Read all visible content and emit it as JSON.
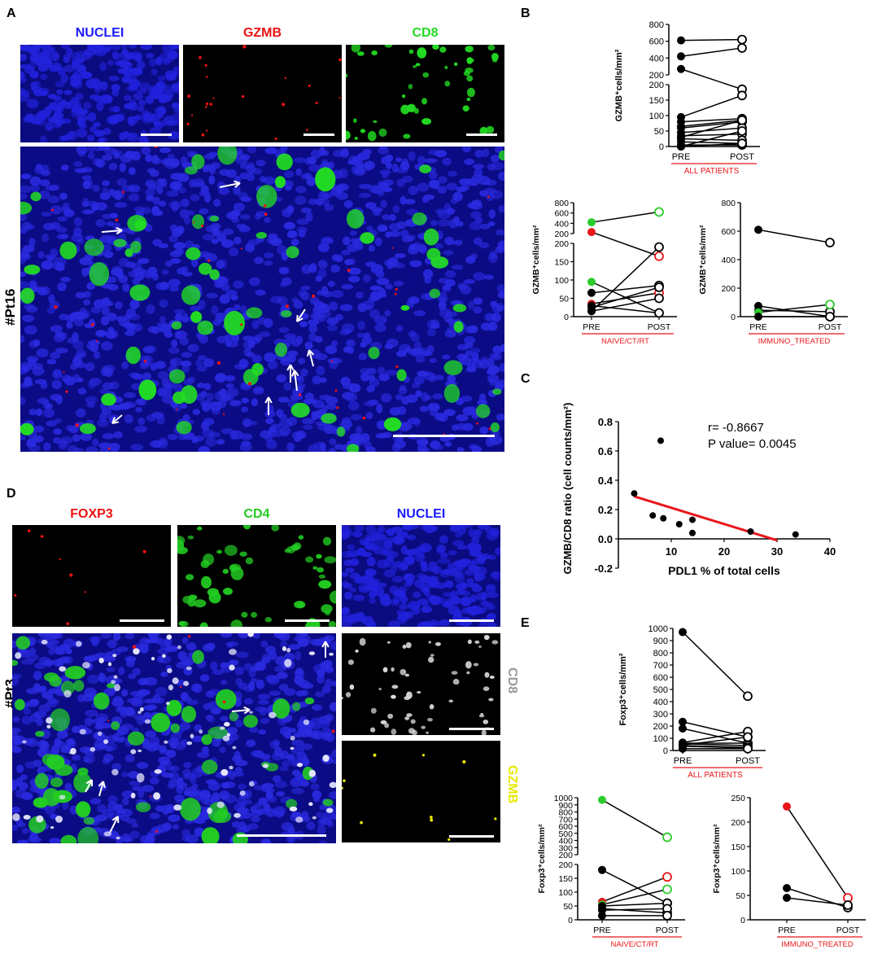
{
  "panel_letters": {
    "A": "A",
    "B": "B",
    "C": "C",
    "D": "D",
    "E": "E"
  },
  "panel_A": {
    "channels": [
      "NUCLEI",
      "GZMB",
      "CD8"
    ],
    "patient": "#Pt16",
    "colors": {
      "nuclei": "#1a1aff",
      "gzmb": "#ee1111",
      "cd8": "#22dd22"
    }
  },
  "panel_D": {
    "channels": [
      "FOXP3",
      "CD4",
      "NUCLEI"
    ],
    "side_channels": [
      "CD8",
      "GZMB"
    ],
    "patient": "#Pt3",
    "colors": {
      "foxp3": "#ee1111",
      "cd4": "#22cc22",
      "nuclei": "#1a1aff",
      "cd8": "#9a9a9a",
      "gzmb": "#e8e800"
    }
  },
  "chart_data": [
    {
      "id": "B-all",
      "type": "line",
      "ylabel": "GZMB⁺cells/mm²",
      "categories": [
        "PRE",
        "POST"
      ],
      "group_label": "ALL PATIENTS",
      "y_axis": "broken",
      "y_ticks_lower": [
        "0",
        "50",
        "100",
        "150",
        "200"
      ],
      "y_ticks_upper": [
        "200",
        "400",
        "600",
        "800"
      ],
      "pairs": [
        [
          610,
          620
        ],
        [
          420,
          520
        ],
        [
          270,
          185
        ],
        [
          95,
          165
        ],
        [
          80,
          90
        ],
        [
          65,
          85
        ],
        [
          60,
          80
        ],
        [
          45,
          60
        ],
        [
          35,
          40
        ],
        [
          25,
          20
        ],
        [
          15,
          10
        ],
        [
          5,
          5
        ],
        [
          30,
          85
        ],
        [
          0,
          50
        ],
        [
          0,
          10
        ]
      ]
    },
    {
      "id": "B-naive",
      "type": "line",
      "ylabel": "GZMB⁺cells/mm²",
      "categories": [
        "PRE",
        "POST"
      ],
      "group_label": "NAIVE/CT/RT",
      "y_axis": "broken",
      "y_ticks_lower": [
        "0",
        "50",
        "100",
        "150",
        "200"
      ],
      "y_ticks_upper": [
        "200",
        "400",
        "600",
        "800"
      ],
      "pairs": [
        [
          420,
          620,
          "green"
        ],
        [
          230,
          165,
          "red"
        ],
        [
          95,
          10,
          "green"
        ],
        [
          65,
          85,
          "black"
        ],
        [
          35,
          65,
          "red"
        ],
        [
          25,
          80,
          "black"
        ],
        [
          15,
          190,
          "black"
        ],
        [
          15,
          50,
          "black"
        ],
        [
          30,
          10,
          "black"
        ]
      ]
    },
    {
      "id": "B-immuno",
      "type": "line",
      "ylabel": "GZMB⁺cells/mm²",
      "categories": [
        "PRE",
        "POST"
      ],
      "group_label": "IMMUNO_TREATED",
      "y_ticks": [
        "0",
        "200",
        "400",
        "600",
        "800"
      ],
      "pairs": [
        [
          610,
          520,
          "black"
        ],
        [
          75,
          0,
          "black"
        ],
        [
          45,
          35,
          "black"
        ],
        [
          30,
          85,
          "green"
        ],
        [
          0,
          0,
          "black"
        ]
      ]
    },
    {
      "id": "C",
      "type": "scatter",
      "xlabel": "PDL1 % of total cells",
      "ylabel": "GZMB/CD8 ratio (cell counts/mm²)",
      "annotation_r": "r= -0.8667",
      "annotation_p": "P value= 0.0045",
      "xlim": [
        0,
        40
      ],
      "ylim": [
        -0.2,
        0.8
      ],
      "x_ticks": [
        "10",
        "20",
        "30",
        "40"
      ],
      "y_ticks": [
        "-0.2",
        "0.0",
        "0.2",
        "0.4",
        "0.6",
        "0.8"
      ],
      "points": [
        [
          3,
          0.31
        ],
        [
          6.5,
          0.16
        ],
        [
          8,
          0.67
        ],
        [
          8.5,
          0.14
        ],
        [
          11.5,
          0.1
        ],
        [
          14,
          0.13
        ],
        [
          14,
          0.04
        ],
        [
          25,
          0.05
        ],
        [
          33.5,
          0.03
        ]
      ],
      "fit": [
        [
          3,
          0.29
        ],
        [
          30,
          -0.01
        ]
      ]
    },
    {
      "id": "E-all",
      "type": "line",
      "ylabel": "Foxp3⁺cells/mm²",
      "categories": [
        "PRE",
        "POST"
      ],
      "group_label": "ALL PATIENTS",
      "y_ticks": [
        "0",
        "100",
        "200",
        "300",
        "400",
        "500",
        "600",
        "700",
        "800",
        "900",
        "1000"
      ],
      "ylim": [
        0,
        1000
      ],
      "pairs": [
        [
          970,
          445
        ],
        [
          235,
          110
        ],
        [
          180,
          60
        ],
        [
          65,
          155
        ],
        [
          60,
          60
        ],
        [
          55,
          40
        ],
        [
          45,
          110
        ],
        [
          40,
          25
        ],
        [
          35,
          20
        ],
        [
          15,
          15
        ]
      ]
    },
    {
      "id": "E-naive",
      "type": "line",
      "ylabel": "Foxp3⁺cells/mm²",
      "categories": [
        "PRE",
        "POST"
      ],
      "group_label": "NAIVE/CT/RT",
      "y_axis": "broken",
      "y_ticks_lower": [
        "0",
        "50",
        "100",
        "150",
        "200"
      ],
      "y_ticks_upper": [
        "200",
        "300",
        "400",
        "500",
        "600",
        "700",
        "800",
        "900",
        "1000"
      ],
      "pairs": [
        [
          970,
          445,
          "green"
        ],
        [
          180,
          60,
          "black"
        ],
        [
          65,
          155,
          "red"
        ],
        [
          55,
          110,
          "green"
        ],
        [
          50,
          60,
          "black"
        ],
        [
          40,
          25,
          "black"
        ],
        [
          35,
          40,
          "black"
        ],
        [
          15,
          15,
          "black"
        ]
      ]
    },
    {
      "id": "E-immuno",
      "type": "line",
      "ylabel": "Foxp3⁺cells/mm²",
      "categories": [
        "PRE",
        "POST"
      ],
      "group_label": "IMMUNO_TREATED",
      "y_ticks": [
        "0",
        "50",
        "100",
        "150",
        "200",
        "250"
      ],
      "ylim": [
        0,
        250
      ],
      "pairs": [
        [
          232,
          45,
          "red"
        ],
        [
          65,
          25,
          "black"
        ],
        [
          45,
          30,
          "black"
        ]
      ]
    }
  ]
}
